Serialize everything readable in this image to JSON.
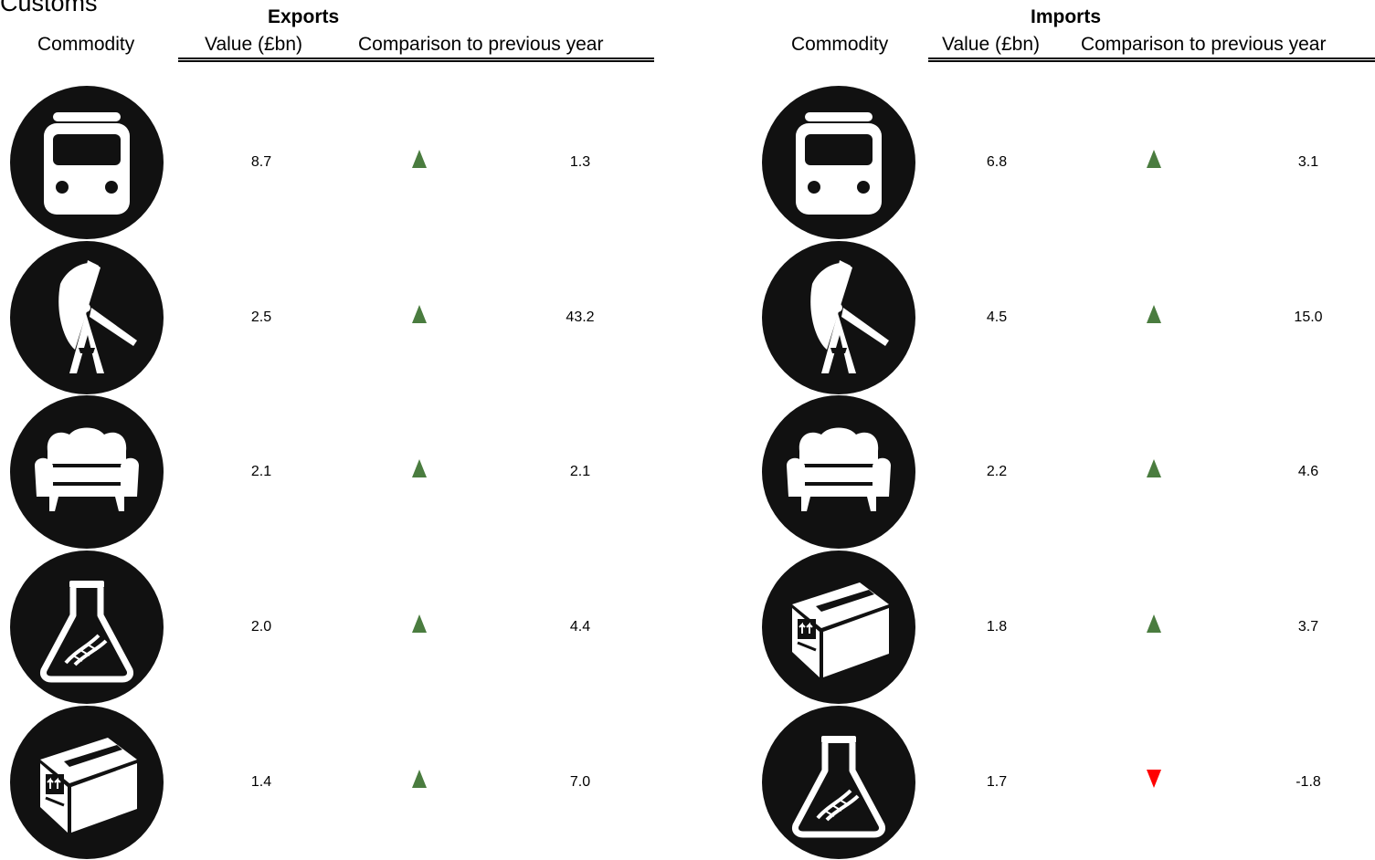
{
  "page": {
    "title": "Customs"
  },
  "colors": {
    "up": "#4a7c3f",
    "down": "#ff0000",
    "icon_bg": "#111111",
    "icon_fg": "#ffffff"
  },
  "exports": {
    "title": "Exports",
    "headers": {
      "commodity": "Commodity",
      "value": "Value (£bn)",
      "comparison": "Comparison to previous year"
    },
    "rows": [
      {
        "icon": "bus-icon",
        "value": "8.7",
        "direction": "up",
        "change": "1.3"
      },
      {
        "icon": "oil-pump-icon",
        "value": "2.5",
        "direction": "up",
        "change": "43.2"
      },
      {
        "icon": "armchair-icon",
        "value": "2.1",
        "direction": "up",
        "change": "2.1"
      },
      {
        "icon": "flask-dna-icon",
        "value": "2.0",
        "direction": "up",
        "change": "4.4"
      },
      {
        "icon": "package-box-icon",
        "value": "1.4",
        "direction": "up",
        "change": "7.0"
      }
    ]
  },
  "imports": {
    "title": "Imports",
    "headers": {
      "commodity": "Commodity",
      "value": "Value (£bn)",
      "comparison": "Comparison to previous year"
    },
    "rows": [
      {
        "icon": "bus-icon",
        "value": "6.8",
        "direction": "up",
        "change": "3.1"
      },
      {
        "icon": "oil-pump-icon",
        "value": "4.5",
        "direction": "up",
        "change": "15.0"
      },
      {
        "icon": "armchair-icon",
        "value": "2.2",
        "direction": "up",
        "change": "4.6"
      },
      {
        "icon": "package-box-icon",
        "value": "1.8",
        "direction": "up",
        "change": "3.7"
      },
      {
        "icon": "flask-dna-icon",
        "value": "1.7",
        "direction": "down",
        "change": "-1.8"
      }
    ]
  }
}
